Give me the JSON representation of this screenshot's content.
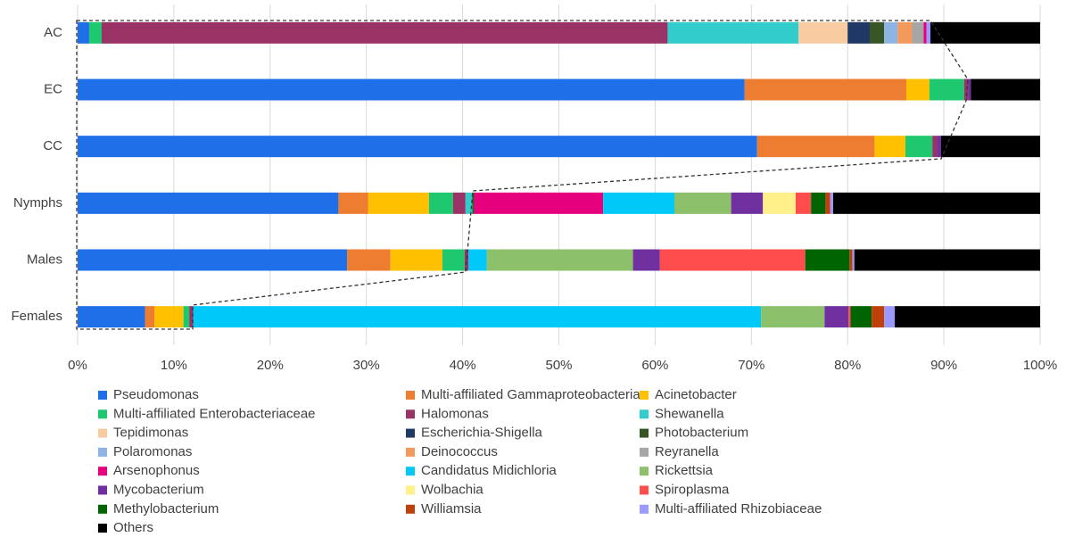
{
  "chart_data": {
    "type": "stacked_bar_horizontal",
    "categories": [
      "AC",
      "EC",
      "CC",
      "Nymphs",
      "Males",
      "Females"
    ],
    "xlim": [
      0,
      100
    ],
    "xticks": [
      {
        "value": 0,
        "label": "0%"
      },
      {
        "value": 10,
        "label": "10%"
      },
      {
        "value": 20,
        "label": "20%"
      },
      {
        "value": 30,
        "label": "30%"
      },
      {
        "value": 40,
        "label": "40%"
      },
      {
        "value": 50,
        "label": "50%"
      },
      {
        "value": 60,
        "label": "60%"
      },
      {
        "value": 70,
        "label": "70%"
      },
      {
        "value": 80,
        "label": "80%"
      },
      {
        "value": 90,
        "label": "90%"
      },
      {
        "value": 100,
        "label": "100%"
      }
    ],
    "grid": true,
    "legend": "bottom",
    "series": [
      {
        "name": "Pseudomonas",
        "color": "#1f6fe8",
        "values": [
          1.2,
          69.3,
          70.6,
          27.1,
          28.0,
          7.0
        ]
      },
      {
        "name": "Multi-affiliated Gammaproteobacteria",
        "color": "#ed7d31",
        "values": [
          0,
          16.8,
          12.2,
          3.1,
          4.5,
          1.0
        ]
      },
      {
        "name": "Acinetobacter",
        "color": "#ffc000",
        "values": [
          0,
          2.4,
          3.2,
          6.3,
          5.4,
          3.0
        ]
      },
      {
        "name": "Multi-affiliated Enterobacteriaceae",
        "color": "#1ec86e",
        "values": [
          1.3,
          3.6,
          2.8,
          2.5,
          2.3,
          0.6
        ]
      },
      {
        "name": "Halomonas",
        "color": "#993366",
        "values": [
          58.8,
          0.4,
          0.5,
          1.3,
          0.4,
          0.4
        ]
      },
      {
        "name": "Shewanella",
        "color": "#33cccc",
        "values": [
          13.6,
          0,
          0,
          0.7,
          0,
          0
        ]
      },
      {
        "name": "Tepidimonas",
        "color": "#f8cba0",
        "values": [
          5.1,
          0,
          0,
          0,
          0,
          0
        ]
      },
      {
        "name": "Escherichia-Shigella",
        "color": "#1f3864",
        "values": [
          2.3,
          0,
          0,
          0,
          0,
          0
        ]
      },
      {
        "name": "Photobacterium",
        "color": "#375623",
        "values": [
          1.5,
          0,
          0,
          0.2,
          0,
          0
        ]
      },
      {
        "name": "Polaromonas",
        "color": "#8db4e2",
        "values": [
          1.4,
          0,
          0,
          0,
          0,
          0
        ]
      },
      {
        "name": "Deinococcus",
        "color": "#f19a5c",
        "values": [
          1.5,
          0,
          0,
          0,
          0,
          0
        ]
      },
      {
        "name": "Reyranella",
        "color": "#a6a6a6",
        "values": [
          1.2,
          0,
          0,
          0,
          0,
          0
        ]
      },
      {
        "name": "Arsenophonus",
        "color": "#e6007e",
        "values": [
          0.3,
          0,
          0,
          13.4,
          0,
          0
        ]
      },
      {
        "name": "Candidatus Midichloria",
        "color": "#00c8f8",
        "values": [
          0,
          0,
          0,
          7.4,
          1.9,
          59.0
        ]
      },
      {
        "name": "Rickettsia",
        "color": "#8dc06b",
        "values": [
          0,
          0,
          0,
          5.9,
          15.2,
          6.6
        ]
      },
      {
        "name": "Mycobacterium",
        "color": "#7030a0",
        "values": [
          0,
          0.3,
          0.4,
          3.3,
          2.8,
          2.5
        ]
      },
      {
        "name": "Wolbachia",
        "color": "#fff08a",
        "values": [
          0,
          0,
          0,
          3.4,
          0,
          0
        ]
      },
      {
        "name": "Spiroplasma",
        "color": "#ff4c4c",
        "values": [
          0,
          0,
          0,
          1.6,
          15.1,
          0.2
        ]
      },
      {
        "name": "Methylobacterium",
        "color": "#006400",
        "values": [
          0,
          0,
          0,
          1.5,
          4.6,
          2.2
        ]
      },
      {
        "name": "Williamsia",
        "color": "#c0400a",
        "values": [
          0,
          0,
          0,
          0.5,
          0.3,
          1.3
        ]
      },
      {
        "name": "Multi-affiliated Rhizobiaceae",
        "color": "#9999ff",
        "values": [
          0.4,
          0,
          0,
          0.3,
          0.2,
          1.1
        ]
      },
      {
        "name": "Others",
        "color": "#000000",
        "values": [
          11.4,
          7.2,
          10.3,
          21.5,
          19.3,
          15.1
        ]
      }
    ]
  }
}
